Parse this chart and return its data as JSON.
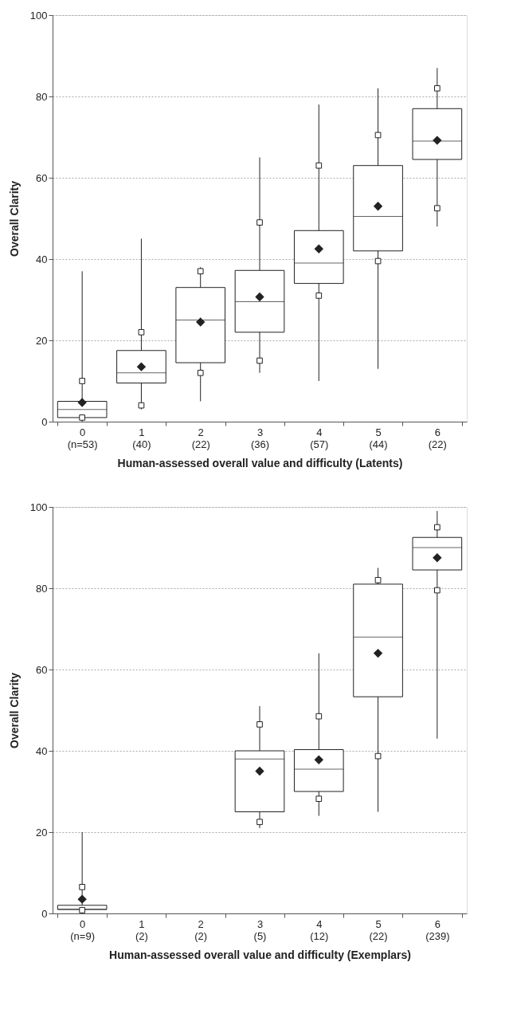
{
  "chart_data": [
    {
      "type": "box",
      "ylabel": "Overall Clarity",
      "xlabel": "Human-assessed overall value and difficulty (Latents)",
      "categories": [
        "0\n(n=53)",
        "1\n(40)",
        "2\n(22)",
        "3\n(36)",
        "4\n(57)",
        "5\n(44)",
        "6\n(22)"
      ],
      "ylim": [
        0,
        100
      ],
      "yticks": [
        0,
        20,
        40,
        60,
        80,
        100
      ],
      "grid": "y",
      "boxes": [
        {
          "low": 0,
          "q1": 1,
          "median": 3,
          "q3": 5,
          "high": 37,
          "mean": 4.7
        },
        {
          "low": 3,
          "q1": 9.5,
          "median": 12,
          "q3": 17.5,
          "high": 45,
          "mean": 13.5
        },
        {
          "low": 5,
          "q1": 14.5,
          "median": 25,
          "q3": 33,
          "high": 38,
          "mean": 24.5
        },
        {
          "low": 12,
          "q1": 22,
          "median": 29.5,
          "q3": 37.2,
          "high": 65,
          "mean": 30.7
        },
        {
          "low": 10,
          "q1": 34,
          "median": 39,
          "q3": 47,
          "high": 78,
          "mean": 42.5
        },
        {
          "low": 13,
          "q1": 42,
          "median": 50.5,
          "q3": 63,
          "high": 82,
          "mean": 53
        },
        {
          "low": 48,
          "q1": 64.5,
          "median": 69,
          "q3": 77,
          "high": 87,
          "mean": 69.2
        }
      ],
      "series": [
        {
          "type": "scatter",
          "marker": "square",
          "color": "#ffffff",
          "x": [
            "0\n(n=53)",
            "1\n(40)",
            "2\n(22)",
            "3\n(36)",
            "4\n(57)",
            "5\n(44)",
            "6\n(22)"
          ],
          "values": [
            1,
            4,
            12,
            15,
            31,
            39.5,
            52.5
          ]
        },
        {
          "type": "scatter",
          "marker": "square",
          "color": "#ffffff",
          "x": [
            "0\n(n=53)",
            "1\n(40)",
            "2\n(22)",
            "3\n(36)",
            "4\n(57)",
            "5\n(44)",
            "6\n(22)"
          ],
          "values": [
            10,
            22,
            37,
            49,
            63,
            70.5,
            82
          ]
        }
      ]
    },
    {
      "type": "box",
      "ylabel": "Overall Clarity",
      "xlabel": "Human-assessed overall value and difficulty (Exemplars)",
      "categories": [
        "0\n(n=9)",
        "1\n(2)",
        "2\n(2)",
        "3\n(5)",
        "4\n(12)",
        "5\n(22)",
        "6\n(239)"
      ],
      "ylim": [
        0,
        100
      ],
      "yticks": [
        0,
        20,
        40,
        60,
        80,
        100
      ],
      "grid": "y",
      "boxes": [
        {
          "low": 0,
          "q1": 1,
          "median": 1,
          "q3": 2,
          "high": 20,
          "mean": 3.5
        },
        null,
        null,
        {
          "low": 21,
          "q1": 25,
          "median": 38,
          "q3": 40,
          "high": 51,
          "mean": 35
        },
        {
          "low": 24,
          "q1": 30,
          "median": 35.5,
          "q3": 40.3,
          "high": 64,
          "mean": 37.8
        },
        {
          "low": 25,
          "q1": 53.3,
          "median": 68,
          "q3": 81,
          "high": 85,
          "mean": 64
        },
        {
          "low": 43,
          "q1": 84.5,
          "median": 90,
          "q3": 92.5,
          "high": 99,
          "mean": 87.5
        }
      ],
      "series": [
        {
          "type": "scatter",
          "marker": "square",
          "color": "#ffffff",
          "x": [
            "0\n(n=9)",
            "3\n(5)",
            "4\n(12)",
            "5\n(22)",
            "6\n(239)"
          ],
          "values": [
            0.8,
            22.5,
            28.2,
            38.7,
            79.5
          ]
        },
        {
          "type": "scatter",
          "marker": "square",
          "color": "#ffffff",
          "x": [
            "0\n(n=9)",
            "3\n(5)",
            "4\n(12)",
            "5\n(22)",
            "6\n(239)"
          ],
          "values": [
            6.5,
            46.5,
            48.5,
            82,
            95
          ]
        }
      ]
    }
  ]
}
